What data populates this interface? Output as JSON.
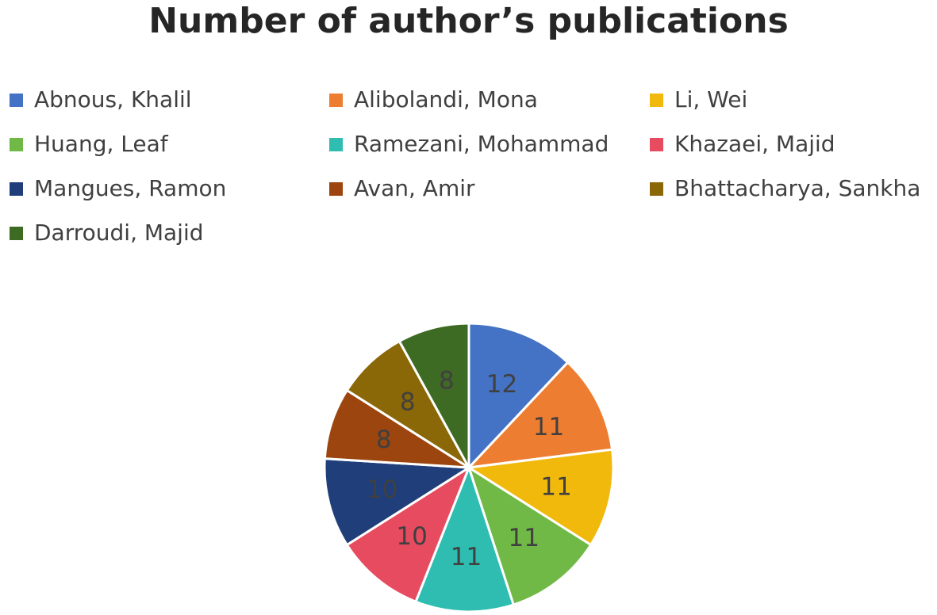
{
  "chart_data": {
    "type": "pie",
    "title": "Number of author’s publications",
    "categories": [
      "Abnous, Khalil",
      "Alibolandi, Mona",
      "Li, Wei",
      "Huang, Leaf",
      "Ramezani, Mohammad",
      "Khazaei, Majid",
      "Mangues, Ramon",
      "Avan, Amir",
      "Bhattacharya, Sankha",
      "Darroudi, Majid"
    ],
    "values": [
      12,
      11,
      11,
      11,
      11,
      10,
      10,
      8,
      8,
      8
    ],
    "colors": [
      "#4472C4",
      "#ED7D31",
      "#F2B90D",
      "#70B946",
      "#2EBDB0",
      "#E74B60",
      "#203F7A",
      "#9C450F",
      "#8A6808",
      "#3E6B23"
    ],
    "legend_position": "top",
    "data_labels": true
  }
}
